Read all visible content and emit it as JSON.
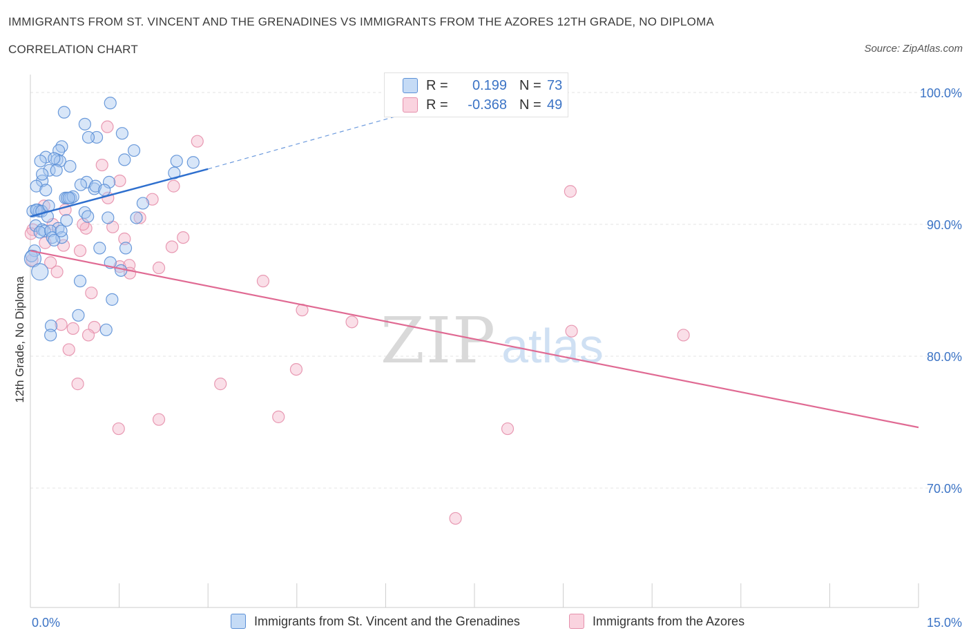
{
  "header": {
    "title": "IMMIGRANTS FROM ST. VINCENT AND THE GRENADINES VS IMMIGRANTS FROM THE AZORES 12TH GRADE, NO DIPLOMA",
    "subtitle": "CORRELATION CHART",
    "source": "Source: ZipAtlas.com"
  },
  "watermark": {
    "zip": "ZIP",
    "atlas": "atlas"
  },
  "legend": {
    "rows": [
      {
        "r_label": "R =",
        "r_value": "0.199",
        "n_label": "N =",
        "n_value": "73",
        "color": "#a9c8f0"
      },
      {
        "r_label": "R =",
        "r_value": "-0.368",
        "n_label": "N =",
        "n_value": "49",
        "color": "#f5b8cb"
      }
    ]
  },
  "bottom_legend": {
    "series1": "Immigrants from St. Vincent and the Grenadines",
    "series2": "Immigrants from the Azores"
  },
  "chart_data": {
    "type": "scatter",
    "title": "IMMIGRANTS FROM ST. VINCENT AND THE GRENADINES VS IMMIGRANTS FROM THE AZORES 12TH GRADE, NO DIPLOMA",
    "xlabel": "",
    "ylabel": "12th Grade, No Diploma",
    "xlim": [
      0,
      15
    ],
    "ylim": [
      60,
      100
    ],
    "x_tick_labels": [
      "0.0%",
      "15.0%"
    ],
    "y_ticks": [
      70,
      80,
      90,
      100
    ],
    "y_tick_labels": [
      "70.0%",
      "80.0%",
      "90.0%",
      "100.0%"
    ],
    "colors": {
      "series1": "#a9c8f0",
      "series1_stroke": "#5b8fd6",
      "series1_line": "#2e6fce",
      "series2": "#f5b8cb",
      "series2_stroke": "#e58fab",
      "series2_line": "#e06a93",
      "axis_text": "#3b73c5"
    },
    "series": [
      {
        "name": "Immigrants from St. Vincent and the Grenadines",
        "R": 0.199,
        "N": 73,
        "trend": {
          "x0": 0.0,
          "y0": 90.6,
          "x1": 3.0,
          "y1": 94.2,
          "dash_to_x": 6.5,
          "dash_to_y": 98.6
        },
        "points": [
          [
            0.57,
            98.5
          ],
          [
            1.35,
            99.2
          ],
          [
            0.92,
            97.6
          ],
          [
            1.12,
            96.6
          ],
          [
            0.98,
            96.6
          ],
          [
            1.55,
            96.9
          ],
          [
            0.53,
            95.9
          ],
          [
            0.48,
            95.6
          ],
          [
            1.75,
            95.6
          ],
          [
            0.26,
            95.1
          ],
          [
            0.17,
            94.8
          ],
          [
            0.45,
            94.9
          ],
          [
            0.5,
            94.8
          ],
          [
            1.59,
            94.9
          ],
          [
            2.47,
            94.8
          ],
          [
            2.75,
            94.7
          ],
          [
            0.32,
            94.1
          ],
          [
            0.44,
            94.1
          ],
          [
            0.67,
            94.4
          ],
          [
            2.43,
            93.9
          ],
          [
            0.2,
            93.3
          ],
          [
            0.95,
            93.2
          ],
          [
            1.33,
            93.2
          ],
          [
            0.1,
            92.9
          ],
          [
            0.26,
            92.6
          ],
          [
            1.08,
            92.7
          ],
          [
            1.1,
            92.9
          ],
          [
            0.59,
            92.0
          ],
          [
            0.62,
            92.0
          ],
          [
            0.68,
            92.0
          ],
          [
            0.72,
            92.1
          ],
          [
            0.12,
            91.1
          ],
          [
            0.04,
            91.0
          ],
          [
            0.15,
            91.0
          ],
          [
            0.1,
            91.1
          ],
          [
            0.19,
            91.0
          ],
          [
            0.92,
            90.9
          ],
          [
            0.97,
            90.6
          ],
          [
            1.31,
            90.5
          ],
          [
            1.79,
            90.5
          ],
          [
            0.29,
            90.6
          ],
          [
            0.61,
            90.3
          ],
          [
            0.09,
            89.9
          ],
          [
            0.2,
            89.6
          ],
          [
            0.24,
            89.5
          ],
          [
            0.16,
            89.4
          ],
          [
            0.47,
            89.7
          ],
          [
            0.34,
            89.5
          ],
          [
            0.37,
            89.0
          ],
          [
            0.53,
            89.0
          ],
          [
            0.4,
            88.8
          ],
          [
            1.17,
            88.2
          ],
          [
            1.61,
            88.2
          ],
          [
            0.07,
            88.0
          ],
          [
            0.02,
            87.6
          ],
          [
            0.04,
            87.4
          ],
          [
            0.16,
            86.4
          ],
          [
            1.35,
            87.1
          ],
          [
            1.53,
            86.5
          ],
          [
            0.84,
            85.7
          ],
          [
            1.38,
            84.3
          ],
          [
            0.81,
            83.1
          ],
          [
            0.35,
            82.3
          ],
          [
            1.28,
            82.0
          ],
          [
            0.34,
            81.6
          ],
          [
            0.52,
            89.5
          ],
          [
            0.31,
            91.4
          ],
          [
            0.65,
            92.0
          ],
          [
            0.85,
            93.0
          ],
          [
            1.25,
            92.6
          ],
          [
            0.2,
            93.8
          ],
          [
            0.4,
            95.0
          ],
          [
            1.9,
            91.6
          ]
        ],
        "point_sizes": {
          "large": [
            [
              0.16,
              86.4
            ],
            [
              0.04,
              87.4
            ]
          ]
        }
      },
      {
        "name": "Immigrants from the Azores",
        "R": -0.368,
        "N": 49,
        "trend": {
          "x0": 0.0,
          "y0": 88.0,
          "x1": 15.0,
          "y1": 74.6
        },
        "points": [
          [
            1.3,
            97.4
          ],
          [
            2.82,
            96.3
          ],
          [
            1.21,
            94.5
          ],
          [
            1.51,
            93.3
          ],
          [
            2.42,
            92.9
          ],
          [
            9.12,
            92.5
          ],
          [
            1.31,
            92.0
          ],
          [
            2.06,
            91.9
          ],
          [
            0.23,
            91.4
          ],
          [
            0.59,
            91.1
          ],
          [
            1.85,
            90.5
          ],
          [
            0.04,
            89.6
          ],
          [
            0.01,
            89.3
          ],
          [
            0.94,
            89.7
          ],
          [
            0.89,
            90.0
          ],
          [
            1.39,
            89.8
          ],
          [
            1.59,
            88.9
          ],
          [
            2.58,
            89.0
          ],
          [
            0.25,
            88.6
          ],
          [
            0.56,
            88.4
          ],
          [
            0.84,
            88.0
          ],
          [
            2.39,
            88.3
          ],
          [
            0.03,
            87.3
          ],
          [
            0.34,
            87.1
          ],
          [
            1.51,
            86.8
          ],
          [
            1.67,
            86.9
          ],
          [
            2.17,
            86.7
          ],
          [
            0.45,
            86.4
          ],
          [
            1.68,
            86.3
          ],
          [
            3.93,
            85.7
          ],
          [
            1.03,
            84.8
          ],
          [
            4.59,
            83.5
          ],
          [
            5.43,
            82.6
          ],
          [
            0.52,
            82.4
          ],
          [
            1.08,
            82.2
          ],
          [
            0.72,
            82.1
          ],
          [
            0.98,
            81.6
          ],
          [
            9.14,
            81.9
          ],
          [
            11.03,
            81.6
          ],
          [
            0.65,
            80.5
          ],
          [
            4.49,
            79.0
          ],
          [
            0.8,
            77.9
          ],
          [
            3.21,
            77.9
          ],
          [
            4.19,
            75.4
          ],
          [
            2.17,
            75.2
          ],
          [
            1.49,
            74.5
          ],
          [
            8.06,
            74.5
          ],
          [
            7.18,
            67.7
          ],
          [
            0.38,
            90.0
          ]
        ]
      }
    ]
  }
}
